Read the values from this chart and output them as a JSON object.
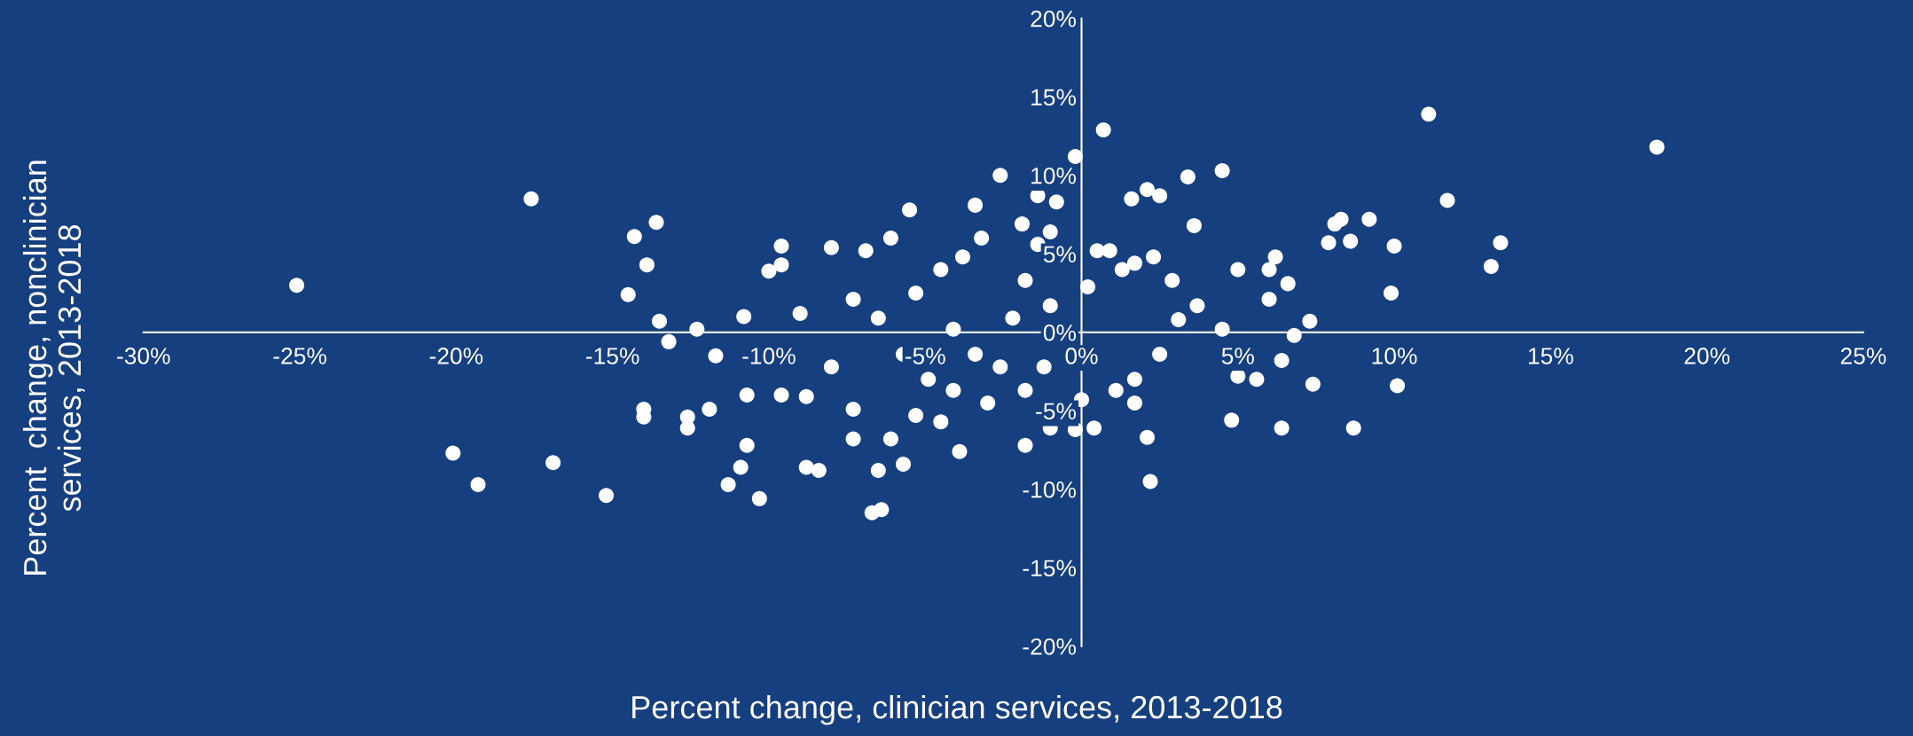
{
  "chart_data": {
    "type": "scatter",
    "xlabel": "Percent change, clinician services, 2013-2018",
    "ylabel": "Percent  change, nonclinician\nservices, 2013-2018",
    "xlim": [
      -30,
      25
    ],
    "ylim": [
      -20,
      20
    ],
    "xticks": [
      {
        "value": -30,
        "label": "-30%"
      },
      {
        "value": -25,
        "label": "-25%"
      },
      {
        "value": -20,
        "label": "-20%"
      },
      {
        "value": -15,
        "label": "-15%"
      },
      {
        "value": -10,
        "label": "-10%"
      },
      {
        "value": -5,
        "label": "-5%"
      },
      {
        "value": 0,
        "label": "0%"
      },
      {
        "value": 5,
        "label": "5%"
      },
      {
        "value": 10,
        "label": "10%"
      },
      {
        "value": 15,
        "label": "15%"
      },
      {
        "value": 20,
        "label": "20%"
      },
      {
        "value": 25,
        "label": "25%"
      }
    ],
    "yticks": [
      {
        "value": -20,
        "label": "-20%"
      },
      {
        "value": -15,
        "label": "-15%"
      },
      {
        "value": -10,
        "label": "-10%"
      },
      {
        "value": -5,
        "label": "-5%"
      },
      {
        "value": 0,
        "label": "0%"
      },
      {
        "value": 5,
        "label": "5%"
      },
      {
        "value": 10,
        "label": "10%"
      },
      {
        "value": 15,
        "label": "15%"
      },
      {
        "value": 20,
        "label": "20%"
      }
    ],
    "grid": false,
    "marker": "circle",
    "series": [
      {
        "color": "#ffffff",
        "x": [
          -25.1,
          -20.1,
          -19.3,
          -17.6,
          -16.9,
          -15.2,
          -14.5,
          -14.3,
          -13.9,
          -13.6,
          -13.5,
          -14.0,
          -14.0,
          -13.2,
          -12.3,
          -12.6,
          -12.6,
          -11.7,
          -11.3,
          -10.3,
          -6.7,
          -6.4,
          -5.5,
          -3.4,
          -2.6,
          -0.2,
          0.7,
          1.6,
          2.1,
          2.5,
          2.1,
          2.2,
          3.4,
          4.5,
          3.6,
          4.8,
          6.4,
          8.7,
          8.1,
          8.3,
          9.2,
          7.9,
          8.6,
          10.0,
          9.9,
          10.1,
          11.1,
          11.7,
          13.4,
          13.1,
          18.4,
          7.3,
          7.4,
          -9.6,
          -10.0,
          -9.6,
          -10.8,
          -9.0,
          -10.7,
          -9.6,
          -10.7,
          -10.9,
          -8.8,
          -8.4,
          -8.0,
          -6.9,
          -6.1,
          -7.3,
          -8.0,
          -8.8,
          -7.3,
          -7.3,
          -6.5,
          -5.7,
          -6.1,
          -5.3,
          -4.9,
          -5.7,
          -6.5,
          -5.3,
          -4.5,
          -3.8,
          -3.2,
          -4.1,
          -3.4,
          -4.1,
          -4.5,
          -3.9,
          -3.0,
          -2.6,
          -2.2,
          -1.8,
          -1.4,
          -1.0,
          -0.8,
          -1.9,
          -1.4,
          -1.0,
          -1.2,
          -1.8,
          -1.0,
          -1.8,
          -0.2,
          0.4,
          0.0,
          0.2,
          0.5,
          0.9,
          1.3,
          1.7,
          2.3,
          2.9,
          3.1,
          2.5,
          1.7,
          1.1,
          1.7,
          3.7,
          4.5,
          5.0,
          6.0,
          6.2,
          6.6,
          6.0,
          6.4,
          5.6,
          5.0,
          6.8,
          -11.9
        ],
        "values": [
          3.0,
          -7.7,
          -9.7,
          8.5,
          -8.3,
          -10.4,
          2.4,
          6.1,
          4.3,
          7.0,
          0.7,
          -4.9,
          -5.4,
          -0.6,
          0.2,
          -5.4,
          -6.1,
          -1.5,
          -9.7,
          -10.6,
          -11.5,
          -11.3,
          7.8,
          8.1,
          10.0,
          11.2,
          12.9,
          8.5,
          9.1,
          8.7,
          -6.7,
          -9.5,
          9.9,
          10.3,
          6.8,
          -5.6,
          -6.1,
          -6.1,
          6.9,
          7.2,
          7.2,
          5.7,
          5.8,
          5.5,
          2.5,
          -3.4,
          13.9,
          8.4,
          5.7,
          4.2,
          11.8,
          0.7,
          -3.3,
          4.3,
          3.9,
          5.5,
          1.0,
          1.2,
          -4.0,
          -4.0,
          -7.2,
          -8.6,
          -8.6,
          -8.8,
          5.4,
          5.2,
          6.0,
          2.1,
          -2.2,
          -4.1,
          -4.9,
          -6.8,
          -8.8,
          -8.4,
          -6.8,
          -5.3,
          -3.0,
          -1.4,
          0.9,
          2.5,
          4.0,
          4.8,
          6.0,
          0.2,
          -1.4,
          -3.7,
          -5.7,
          -7.6,
          -4.5,
          -2.2,
          0.9,
          3.3,
          5.6,
          6.4,
          8.3,
          6.9,
          8.7,
          1.7,
          -2.2,
          -3.7,
          -6.1,
          -7.2,
          -6.2,
          -6.1,
          -4.3,
          2.9,
          5.2,
          5.2,
          4.0,
          4.4,
          4.8,
          3.3,
          0.8,
          -1.4,
          -3.0,
          -3.7,
          -4.5,
          1.7,
          0.2,
          4.0,
          4.0,
          4.8,
          3.1,
          2.1,
          -1.8,
          -3.0,
          -2.8,
          -0.2,
          -4.9
        ]
      }
    ]
  }
}
